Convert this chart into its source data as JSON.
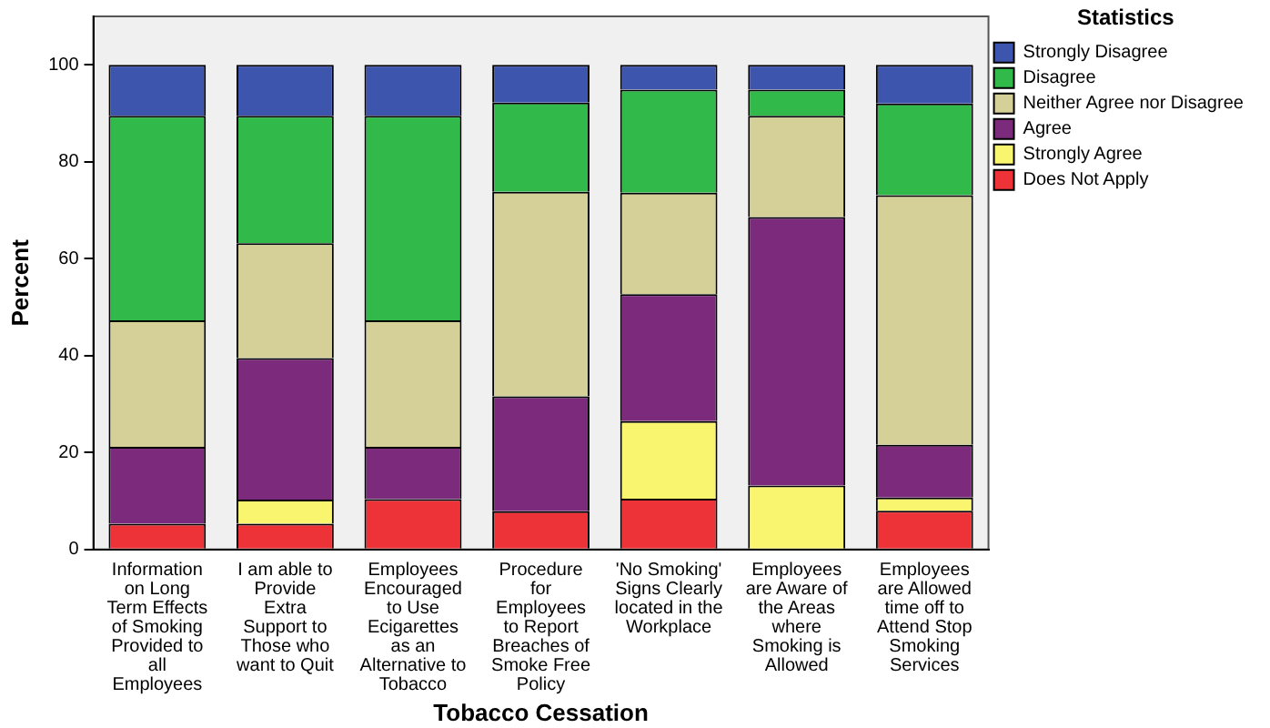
{
  "chart_data": {
    "type": "bar",
    "stacked": true,
    "xlabel": "Tobacco Cessation",
    "ylabel": "Percent",
    "legend_title": "Statistics",
    "legend": "top right",
    "grid": false,
    "categories": [
      "Information on Long Term Effects of Smoking Provided to all Employees",
      "I am able to Provide Extra Support to Those who want to Quit",
      "Employees Encouraged to Use Ecigarettes as an Alternative to Tobacco",
      "Procedure for Employees to Report Breaches of Smoke Free Policy",
      "'No Smoking' Signs Clearly located in the Workplace",
      "Employees are Aware of the Areas where Smoking is Allowed",
      "Employees are Allowed time off to Attend Stop Smoking Services"
    ],
    "ylim": [
      0,
      110
    ],
    "yticks": [
      0,
      20,
      40,
      60,
      80,
      100
    ],
    "series": [
      {
        "name": "Does Not Apply",
        "color": "#ed3338",
        "values": [
          5.3,
          5.3,
          10.4,
          7.9,
          10.5,
          0,
          8.0
        ]
      },
      {
        "name": "Strongly Agree",
        "color": "#faf56e",
        "values": [
          0,
          5.0,
          0,
          0,
          16.0,
          13.2,
          2.7
        ]
      },
      {
        "name": "Agree",
        "color": "#7b2a7c",
        "values": [
          15.9,
          29.2,
          10.8,
          23.7,
          26.2,
          55.4,
          10.9
        ]
      },
      {
        "name": "Neither Agree nor Disagree",
        "color": "#d5cf98",
        "values": [
          26.1,
          23.7,
          26.1,
          42.2,
          20.9,
          20.9,
          51.5
        ]
      },
      {
        "name": "Disagree",
        "color": "#31b94a",
        "values": [
          42.2,
          26.3,
          42.2,
          18.4,
          21.3,
          5.4,
          18.9
        ]
      },
      {
        "name": "Strongly Disagree",
        "color": "#3d55ad",
        "values": [
          10.5,
          10.5,
          10.5,
          7.8,
          5.1,
          5.1,
          8.0
        ]
      }
    ]
  }
}
